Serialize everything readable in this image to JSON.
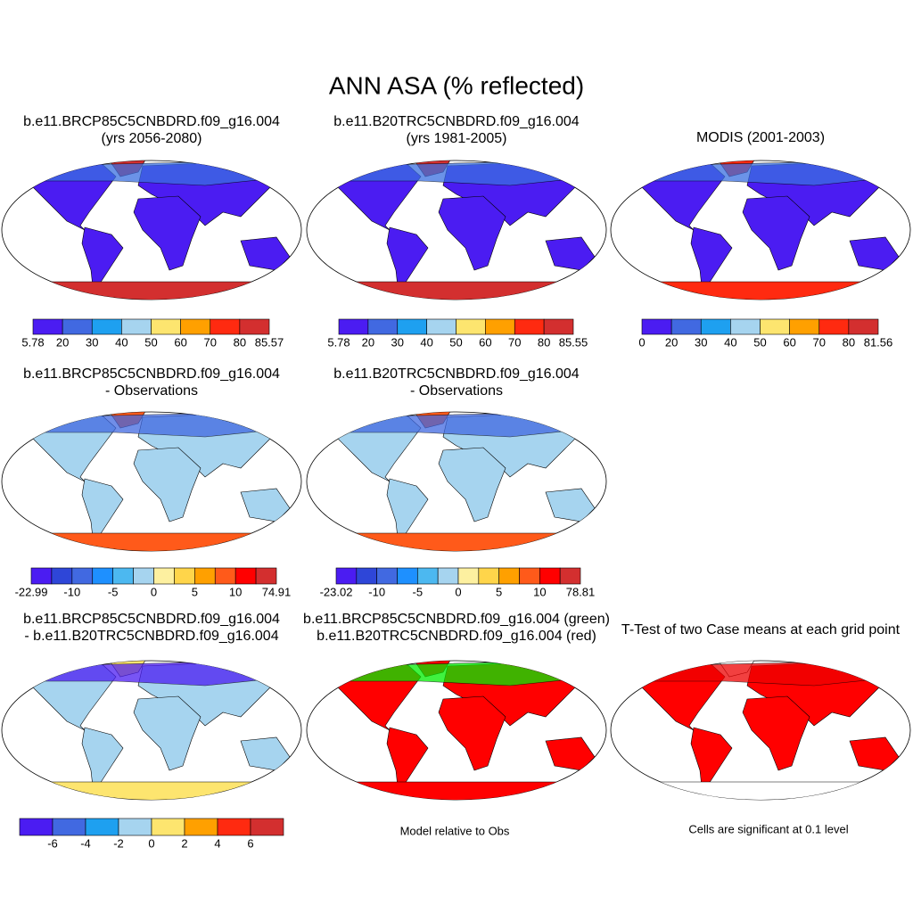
{
  "title": "ANN ASA (% reflected)",
  "panels": [
    {
      "title": [
        "b.e11.BRCP85C5CNBDRD.f09_g16.004",
        "(yrs 2056-2080)"
      ],
      "colorbar": {
        "colors": [
          "#4b1cf2",
          "#4169e1",
          "#1ea0f0",
          "#a6d4ef",
          "#fde56f",
          "#ffa000",
          "#ff2a10",
          "#d32f2f"
        ],
        "labels": [
          "5.78",
          "20",
          "30",
          "40",
          "50",
          "60",
          "70",
          "80",
          "85.57"
        ]
      }
    },
    {
      "title": [
        "b.e11.B20TRC5CNBDRD.f09_g16.004",
        "(yrs 1981-2005)"
      ],
      "colorbar": {
        "colors": [
          "#4b1cf2",
          "#4169e1",
          "#1ea0f0",
          "#a6d4ef",
          "#fde56f",
          "#ffa000",
          "#ff2a10",
          "#d32f2f"
        ],
        "labels": [
          "5.78",
          "20",
          "30",
          "40",
          "50",
          "60",
          "70",
          "80",
          "85.55"
        ]
      }
    },
    {
      "title": [
        "MODIS (2001-2003)"
      ],
      "colorbar": {
        "colors": [
          "#4b1cf2",
          "#4169e1",
          "#1ea0f0",
          "#a6d4ef",
          "#fde56f",
          "#ffa000",
          "#ff2a10",
          "#d32f2f"
        ],
        "labels": [
          "0",
          "20",
          "30",
          "40",
          "50",
          "60",
          "70",
          "80",
          "81.56"
        ]
      }
    },
    {
      "title": [
        "b.e11.BRCP85C5CNBDRD.f09_g16.004",
        "- Observations"
      ],
      "colorbar": {
        "colors": [
          "#4b1cf2",
          "#2e46d8",
          "#4169e1",
          "#1e90ff",
          "#4cb8f0",
          "#a6d4ef",
          "#fdf0a0",
          "#ffd54a",
          "#ffa000",
          "#ff5a1a",
          "#ff0000",
          "#d32f2f"
        ],
        "labels": [
          "-22.99",
          "-10",
          "-5",
          "0",
          "5",
          "10",
          "74.91"
        ]
      }
    },
    {
      "title": [
        "b.e11.B20TRC5CNBDRD.f09_g16.004",
        "- Observations"
      ],
      "colorbar": {
        "colors": [
          "#4b1cf2",
          "#2e46d8",
          "#4169e1",
          "#1e90ff",
          "#4cb8f0",
          "#a6d4ef",
          "#fdf0a0",
          "#ffd54a",
          "#ffa000",
          "#ff5a1a",
          "#ff0000",
          "#d32f2f"
        ],
        "labels": [
          "-23.02",
          "-10",
          "-5",
          "0",
          "5",
          "10",
          "78.81"
        ]
      }
    },
    {
      "title": [
        "b.e11.BRCP85C5CNBDRD.f09_g16.004",
        "- b.e11.B20TRC5CNBDRD.f09_g16.004"
      ],
      "colorbar": {
        "colors": [
          "#4b1cf2",
          "#4169e1",
          "#1ea0f0",
          "#a6d4ef",
          "#fde56f",
          "#ffa000",
          "#ff2a10",
          "#d32f2f"
        ],
        "labels": [
          "-6",
          "-4",
          "-2",
          "0",
          "2",
          "4",
          "6"
        ]
      }
    },
    {
      "title": [
        "b.e11.BRCP85C5CNBDRD.f09_g16.004 (green)",
        "b.e11.B20TRC5CNBDRD.f09_g16.004 (red)"
      ],
      "caption": "Model relative to Obs"
    },
    {
      "title": [
        "T-Test of two Case means at each grid point"
      ],
      "caption": "Cells are significant at 0.1 level"
    }
  ]
}
